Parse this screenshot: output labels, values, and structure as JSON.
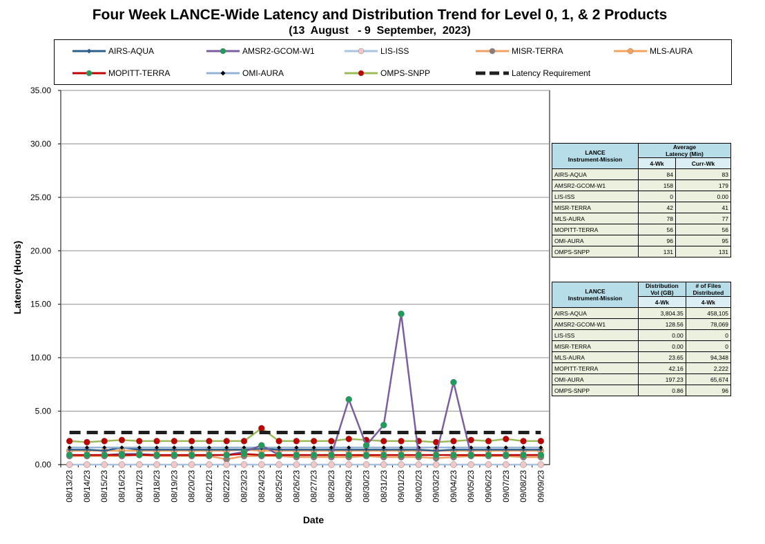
{
  "title_line1": "Four Week LANCE-Wide Latency and Distribution Trend for Level 0, 1, & 2 Products",
  "title_line2": "(13  August   - 9  September,  2023)",
  "legend": [
    {
      "label": "AIRS-AQUA",
      "color": "#2e5f8a",
      "marker": "diamond",
      "marker_color": "#2e5f8a"
    },
    {
      "label": "AMSR2-GCOM-W1",
      "color": "#7a5ea0",
      "marker": "circle",
      "marker_color": "#1e9c5a"
    },
    {
      "label": "LIS-ISS",
      "color": "#a9c4e0",
      "marker": "circle",
      "marker_color": "#f4c7c7"
    },
    {
      "label": "MISR-TERRA",
      "color": "#f0a060",
      "marker": "circle",
      "marker_color": "#8c7e78"
    },
    {
      "label": "MLS-AURA",
      "color": "#f5a45e",
      "marker": "circle",
      "marker_color": "#f5a45e"
    },
    {
      "label": "MOPITT-TERRA",
      "color": "#c00000",
      "marker": "circle",
      "marker_color": "#1e9c5a"
    },
    {
      "label": "OMI-AURA",
      "color": "#95b3d7",
      "marker": "diamond",
      "marker_color": "#000000"
    },
    {
      "label": "OMPS-SNPP",
      "color": "#9bbb59",
      "marker": "circle",
      "marker_color": "#c00000"
    },
    {
      "label": "Latency Requirement",
      "color": "#1f1f1f",
      "marker": "dash",
      "marker_color": "#1f1f1f"
    }
  ],
  "chart_data": {
    "type": "line",
    "title": "Four Week LANCE-Wide Latency and Distribution Trend for Level 0, 1, & 2 Products",
    "xlabel": "Date",
    "ylabel": "Latency (Hours)",
    "ylim": [
      0,
      35
    ],
    "yticks": [
      "0.00",
      "5.00",
      "10.00",
      "15.00",
      "20.00",
      "25.00",
      "30.00",
      "35.00"
    ],
    "ytick_values": [
      0,
      5,
      10,
      15,
      20,
      25,
      30,
      35
    ],
    "grid": true,
    "x": [
      "08/13/23",
      "08/14/23",
      "08/15/23",
      "08/16/23",
      "08/17/23",
      "08/18/23",
      "08/19/23",
      "08/20/23",
      "08/21/23",
      "08/22/23",
      "08/23/23",
      "08/24/23",
      "08/25/23",
      "08/26/23",
      "08/27/23",
      "08/28/23",
      "08/29/23",
      "08/30/23",
      "08/31/23",
      "09/01/23",
      "09/02/23",
      "09/03/23",
      "09/04/23",
      "09/05/23",
      "09/06/23",
      "09/07/23",
      "09/08/23",
      "09/09/23"
    ],
    "series": [
      {
        "name": "MISR-TERRA",
        "color": "#f0a060",
        "marker": "circle",
        "marker_color": "#8c7e78",
        "values": [
          0.8,
          0.8,
          0.8,
          0.8,
          0.9,
          0.8,
          0.8,
          0.8,
          0.8,
          0.5,
          0.8,
          0.8,
          0.8,
          0.7,
          0.7,
          0.7,
          0.7,
          0.8,
          0.7,
          0.7,
          0.7,
          0.6,
          0.7,
          0.8,
          0.8,
          0.8,
          0.7,
          0.7
        ]
      },
      {
        "name": "MLS-AURA",
        "color": "#f5a45e",
        "marker": "circle",
        "marker_color": "#f5a45e",
        "values": [
          1.3,
          1.3,
          1.3,
          1.3,
          1.3,
          1.3,
          1.3,
          1.3,
          1.3,
          1.3,
          1.4,
          1.3,
          1.3,
          1.3,
          1.3,
          1.3,
          1.3,
          1.3,
          1.3,
          1.3,
          1.3,
          1.3,
          1.3,
          1.3,
          1.3,
          1.3,
          1.3,
          1.3
        ]
      },
      {
        "name": "AIRS-AQUA",
        "color": "#2e5f8a",
        "marker": "diamond",
        "marker_color": "#2e5f8a",
        "values": [
          1.4,
          1.4,
          1.3,
          1.6,
          1.4,
          1.4,
          1.4,
          1.4,
          1.4,
          1.4,
          1.4,
          1.5,
          1.4,
          1.4,
          1.4,
          1.4,
          1.4,
          1.4,
          1.4,
          1.4,
          1.4,
          1.3,
          1.4,
          1.4,
          1.4,
          1.4,
          1.4,
          1.4
        ]
      },
      {
        "name": "OMI-AURA",
        "color": "#95b3d7",
        "marker": "diamond",
        "marker_color": "#000000",
        "values": [
          1.6,
          1.6,
          1.6,
          1.6,
          1.6,
          1.6,
          1.6,
          1.6,
          1.6,
          1.6,
          1.6,
          1.6,
          1.6,
          1.6,
          1.6,
          1.6,
          1.6,
          1.6,
          1.6,
          1.6,
          1.6,
          1.6,
          1.6,
          1.6,
          1.6,
          1.6,
          1.6,
          1.6
        ]
      },
      {
        "name": "OMPS-SNPP",
        "color": "#9bbb59",
        "marker": "circle",
        "marker_color": "#c00000",
        "values": [
          2.2,
          2.1,
          2.2,
          2.3,
          2.2,
          2.2,
          2.2,
          2.2,
          2.2,
          2.2,
          2.2,
          3.4,
          2.2,
          2.2,
          2.2,
          2.2,
          2.4,
          2.3,
          2.2,
          2.2,
          2.2,
          2.1,
          2.2,
          2.3,
          2.2,
          2.4,
          2.2,
          2.2
        ]
      },
      {
        "name": "AMSR2-GCOM-W1",
        "color": "#7a5ea0",
        "marker": "circle",
        "marker_color": "#1e9c5a",
        "values": [
          0.9,
          0.9,
          0.9,
          1.0,
          1.0,
          0.9,
          0.9,
          0.9,
          0.9,
          0.9,
          1.2,
          1.8,
          0.9,
          0.9,
          0.9,
          0.9,
          6.1,
          1.8,
          3.7,
          14.1,
          0.9,
          0.9,
          7.7,
          0.9,
          0.9,
          0.9,
          0.9,
          0.9
        ]
      },
      {
        "name": "MOPITT-TERRA",
        "color": "#c00000",
        "marker": "circle",
        "marker_color": "#1e9c5a",
        "values": [
          0.9,
          0.9,
          0.9,
          0.9,
          0.9,
          0.9,
          0.9,
          0.9,
          0.9,
          0.9,
          1.0,
          0.9,
          0.9,
          0.9,
          0.9,
          0.9,
          0.9,
          0.9,
          0.9,
          0.9,
          0.9,
          0.9,
          0.9,
          0.9,
          0.9,
          0.9,
          0.9,
          0.9
        ]
      },
      {
        "name": "LIS-ISS",
        "color": "#a9c4e0",
        "marker": "circle",
        "marker_color": "#f4c7c7",
        "values": [
          0,
          0,
          0,
          0,
          0,
          0,
          0,
          0,
          0,
          0,
          0,
          0,
          0,
          0,
          0,
          0,
          0,
          0,
          0,
          0,
          0,
          0,
          0,
          0,
          0,
          0,
          0,
          0
        ]
      },
      {
        "name": "Latency Requirement",
        "color": "#1f1f1f",
        "dashed": true,
        "values": [
          3,
          3,
          3,
          3,
          3,
          3,
          3,
          3,
          3,
          3,
          3,
          3,
          3,
          3,
          3,
          3,
          3,
          3,
          3,
          3,
          3,
          3,
          3,
          3,
          3,
          3,
          3,
          3
        ]
      }
    ]
  },
  "table1": {
    "col1_header": "LANCE\nInstrument-Mission",
    "col2_header": "Average\nLatency (Min)",
    "sub_4wk": "4-Wk",
    "sub_curr": "Curr-Wk",
    "rows": [
      {
        "name": "AIRS-AQUA",
        "wk4": "84",
        "curr": "83"
      },
      {
        "name": "AMSR2-GCOM-W1",
        "wk4": "158",
        "curr": "179"
      },
      {
        "name": "LIS-ISS",
        "wk4": "0",
        "curr": "0.00"
      },
      {
        "name": "MISR-TERRA",
        "wk4": "42",
        "curr": "41"
      },
      {
        "name": "MLS-AURA",
        "wk4": "78",
        "curr": "77"
      },
      {
        "name": "MOPITT-TERRA",
        "wk4": "56",
        "curr": "56"
      },
      {
        "name": "OMI-AURA",
        "wk4": "96",
        "curr": "95"
      },
      {
        "name": "OMPS-SNPP",
        "wk4": "131",
        "curr": "131"
      }
    ]
  },
  "table2": {
    "col1_header": "LANCE\nInstrument-Mission",
    "col2_header": "Distribution\nVol (GB)",
    "col3_header": "# of Files\nDistributed",
    "sub_a": "4-Wk",
    "sub_b": "4-Wk",
    "rows": [
      {
        "name": "AIRS-AQUA",
        "vol": "3,804.35",
        "files": "458,105"
      },
      {
        "name": "AMSR2-GCOM-W1",
        "vol": "128.56",
        "files": "78,069"
      },
      {
        "name": "LIS-ISS",
        "vol": "0.00",
        "files": "0"
      },
      {
        "name": "MISR-TERRA",
        "vol": "0.00",
        "files": "0"
      },
      {
        "name": "MLS-AURA",
        "vol": "23.65",
        "files": "94,348"
      },
      {
        "name": "MOPITT-TERRA",
        "vol": "42.16",
        "files": "2,222"
      },
      {
        "name": "OMI-AURA",
        "vol": "197.23",
        "files": "65,674"
      },
      {
        "name": "OMPS-SNPP",
        "vol": "0.86",
        "files": "96"
      }
    ]
  }
}
